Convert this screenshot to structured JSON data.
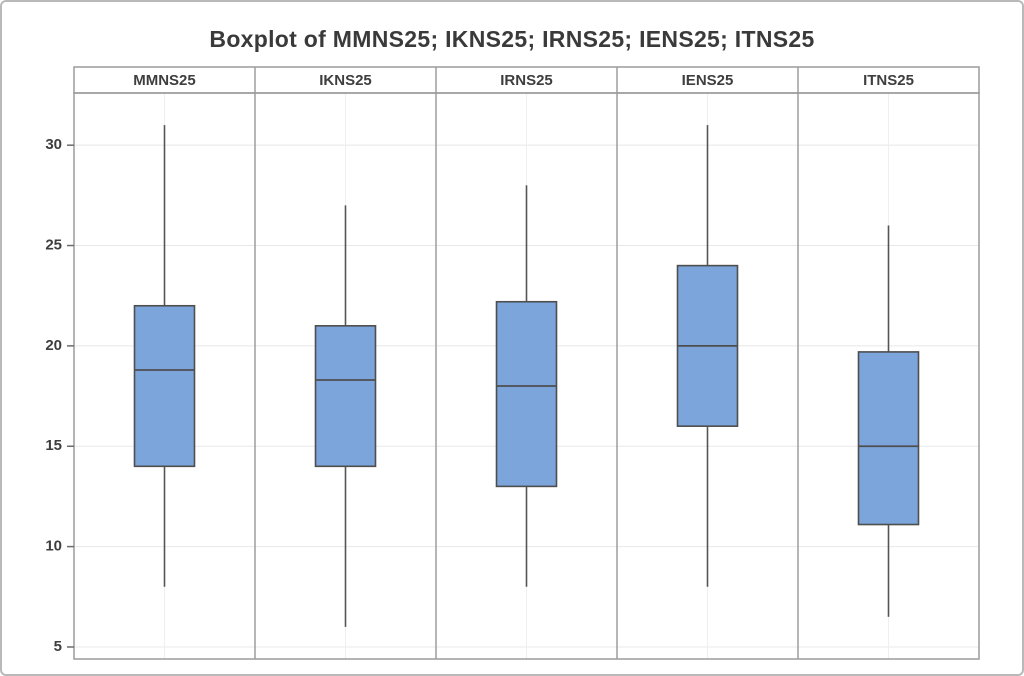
{
  "window": {
    "title": "Boxplot of MMNS25; IKNS25; IRNS25; IENS25; ITNS25"
  },
  "chart_data": {
    "type": "boxplot",
    "title": "Boxplot of MMNS25; IKNS25; IRNS25; IENS25; ITNS25",
    "categories": [
      "MMNS25",
      "IKNS25",
      "IRNS25",
      "IENS25",
      "ITNS25"
    ],
    "series": [
      {
        "name": "MMNS25",
        "whisker_low": 8,
        "q1": 14,
        "median": 18.8,
        "q3": 22,
        "whisker_high": 31
      },
      {
        "name": "IKNS25",
        "whisker_low": 6,
        "q1": 14,
        "median": 18.3,
        "q3": 21,
        "whisker_high": 27
      },
      {
        "name": "IRNS25",
        "whisker_low": 8,
        "q1": 13,
        "median": 18,
        "q3": 22.2,
        "whisker_high": 28
      },
      {
        "name": "IENS25",
        "whisker_low": 8,
        "q1": 16,
        "median": 20,
        "q3": 24,
        "whisker_high": 31
      },
      {
        "name": "ITNS25",
        "whisker_low": 6.5,
        "q1": 11.1,
        "median": 15,
        "q3": 19.7,
        "whisker_high": 26
      }
    ],
    "yticks": [
      5,
      10,
      15,
      20,
      25,
      30
    ],
    "ylim": [
      4.4,
      32.6
    ],
    "xlabel": "",
    "ylabel": "",
    "grid": true,
    "legend": "none",
    "layout": "five side-by-side panels, one per variable, with panel header labels",
    "colors": {
      "box_fill": "#7CA5DB",
      "box_stroke": "#4E4E4E",
      "median_stroke": "#4E4E4E",
      "whisker_stroke": "#555555",
      "frame_stroke": "#9B9B9B",
      "panel_divider": "#9E9E9E",
      "gridline_h": "#E8E8E8",
      "gridline_v": "#EFEFEF",
      "tick_mark": "#6B6B6B",
      "title_color": "#3A3A3A"
    }
  }
}
